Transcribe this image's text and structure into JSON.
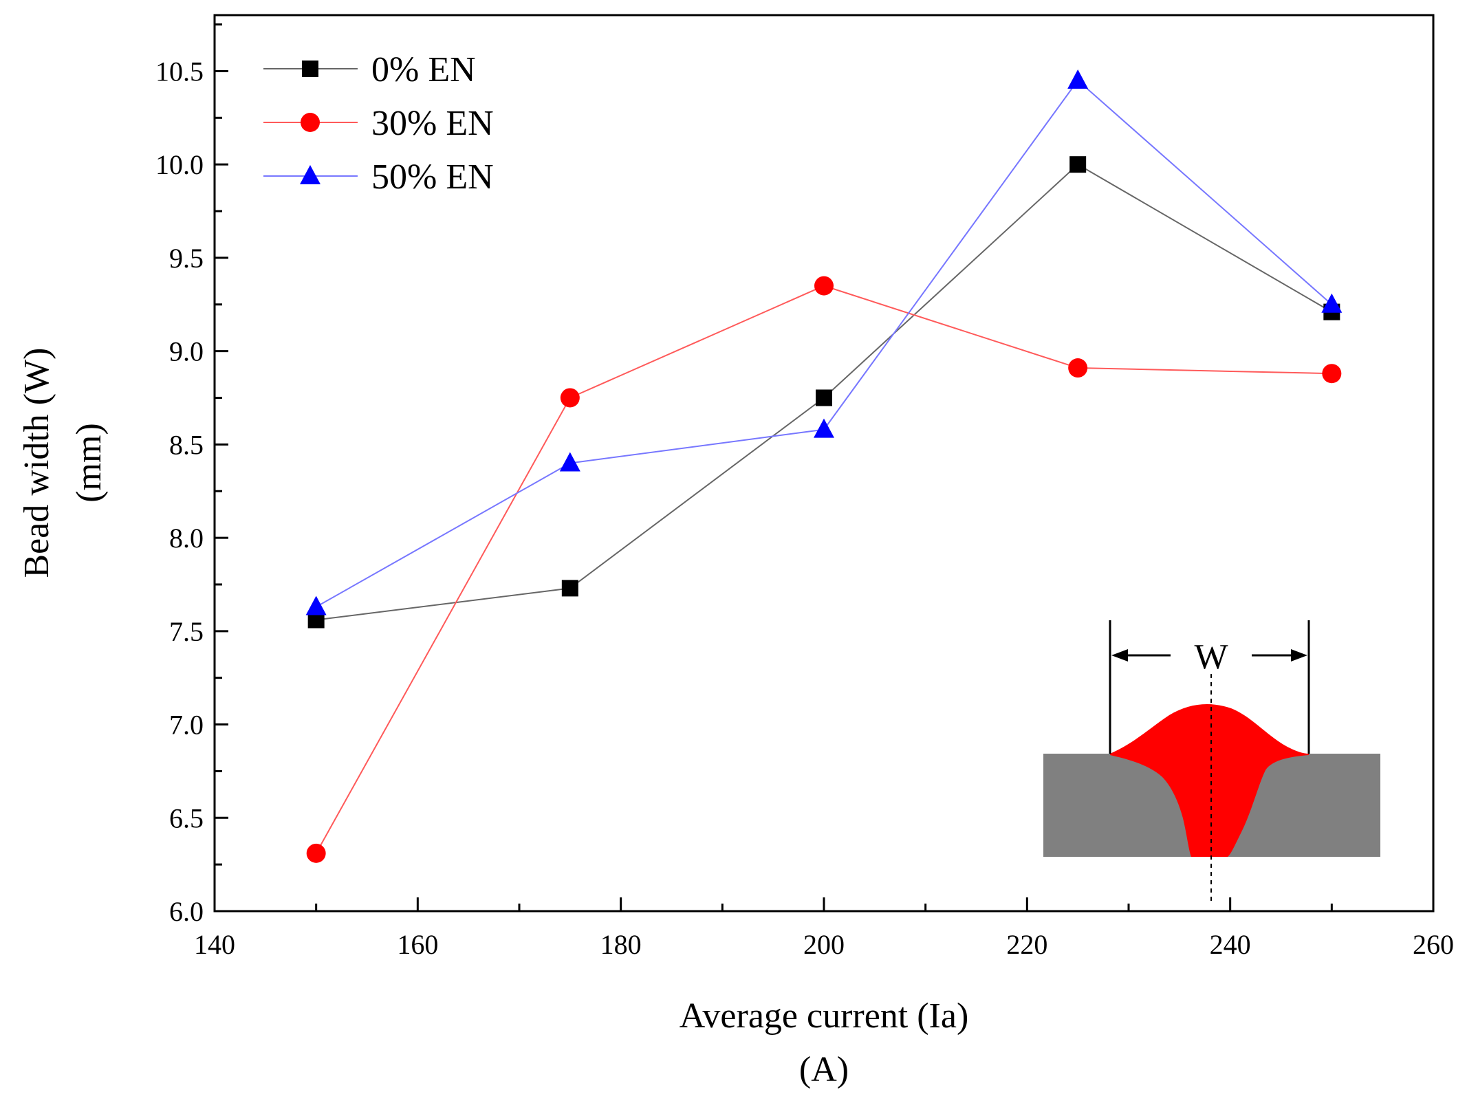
{
  "chart_data": {
    "type": "line",
    "xlabel_line1": "Average current (Ia)",
    "xlabel_line2": "(A)",
    "ylabel_line1": "Bead width (W)",
    "ylabel_line2": "(mm)",
    "xlim": [
      140,
      260
    ],
    "ylim": [
      6.0,
      10.8
    ],
    "xticks": [
      140,
      160,
      180,
      200,
      220,
      240,
      260
    ],
    "yticks": [
      "6.0",
      "6.5",
      "7.0",
      "7.5",
      "8.0",
      "8.5",
      "9.0",
      "9.5",
      "10.0",
      "10.5"
    ],
    "x": [
      150,
      175,
      200,
      225,
      250
    ],
    "series": [
      {
        "name": "0% EN",
        "marker": "square",
        "line_color": "#666666",
        "marker_color": "#000000",
        "values": [
          7.56,
          7.73,
          8.75,
          10.0,
          9.21
        ]
      },
      {
        "name": "30% EN",
        "marker": "circle",
        "line_color": "#ff5a5a",
        "marker_color": "#ff0000",
        "values": [
          6.31,
          8.75,
          9.35,
          8.91,
          8.88
        ]
      },
      {
        "name": "50% EN",
        "marker": "triangle",
        "line_color": "#7777ff",
        "marker_color": "#0000ff",
        "values": [
          7.63,
          8.4,
          8.58,
          10.45,
          9.25
        ]
      }
    ],
    "legend": "top-left",
    "inset": {
      "label": "W",
      "description_colors": {
        "bead": "#ff0000",
        "plate": "#808080"
      }
    }
  }
}
